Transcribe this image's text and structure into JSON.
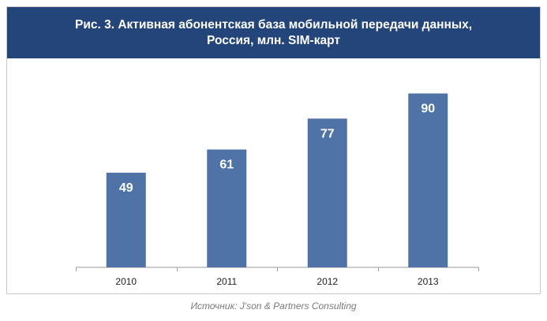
{
  "chart_data": {
    "type": "bar",
    "title": "Рис. 3. Активная абонентская база мобильной передачи данных,\nРоссия, млн. SIM-карт",
    "categories": [
      "2010",
      "2011",
      "2012",
      "2013"
    ],
    "values": [
      49,
      61,
      77,
      90
    ],
    "ylim": [
      0,
      100
    ],
    "grid": false,
    "data_labels": true,
    "bar_color": "#4f73a6",
    "label_color": "#ffffff"
  },
  "source": "Источник: J'son & Partners Consulting",
  "colors": {
    "header_bg": "#24457a",
    "header_text": "#ffffff"
  }
}
